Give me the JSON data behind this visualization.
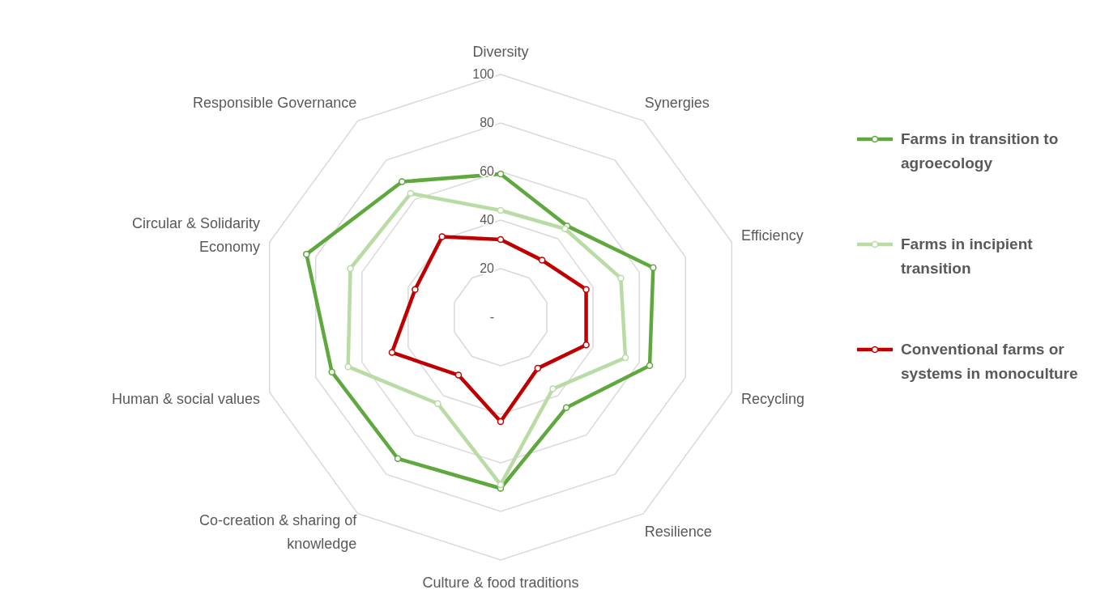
{
  "chart_data": {
    "type": "radar",
    "categories": [
      "Diversity",
      "Synergies",
      "Efficiency",
      "Recycling",
      "Resilience",
      "Culture & food traditions",
      "Co-creation & sharing of knowledge",
      "Human & social values",
      "Circular & Solidarity Economy",
      "Responsible Governance"
    ],
    "series": [
      {
        "name": "Farms in transition to agroecology",
        "color": "#5ea83e",
        "values": [
          59,
          46.5,
          66,
          64.5,
          46,
          70.5,
          72,
          73,
          84,
          69
        ]
      },
      {
        "name": "Farms in incipient transition",
        "color": "#b8dca4",
        "values": [
          44,
          45,
          52,
          54,
          36.5,
          69,
          44,
          66,
          65,
          63
        ]
      },
      {
        "name": "Conventional farms or systems in monoculture",
        "color": "#c00000",
        "values": [
          32,
          29,
          37,
          37,
          26,
          43,
          29.5,
          47,
          37,
          41
        ]
      }
    ],
    "ylim": [
      0,
      100
    ],
    "yticks": [
      {
        "value": 0,
        "label": "-"
      },
      20,
      40,
      60,
      80,
      100
    ],
    "grid": true,
    "legend": "right",
    "marker": "circle",
    "line_style": "solid"
  }
}
